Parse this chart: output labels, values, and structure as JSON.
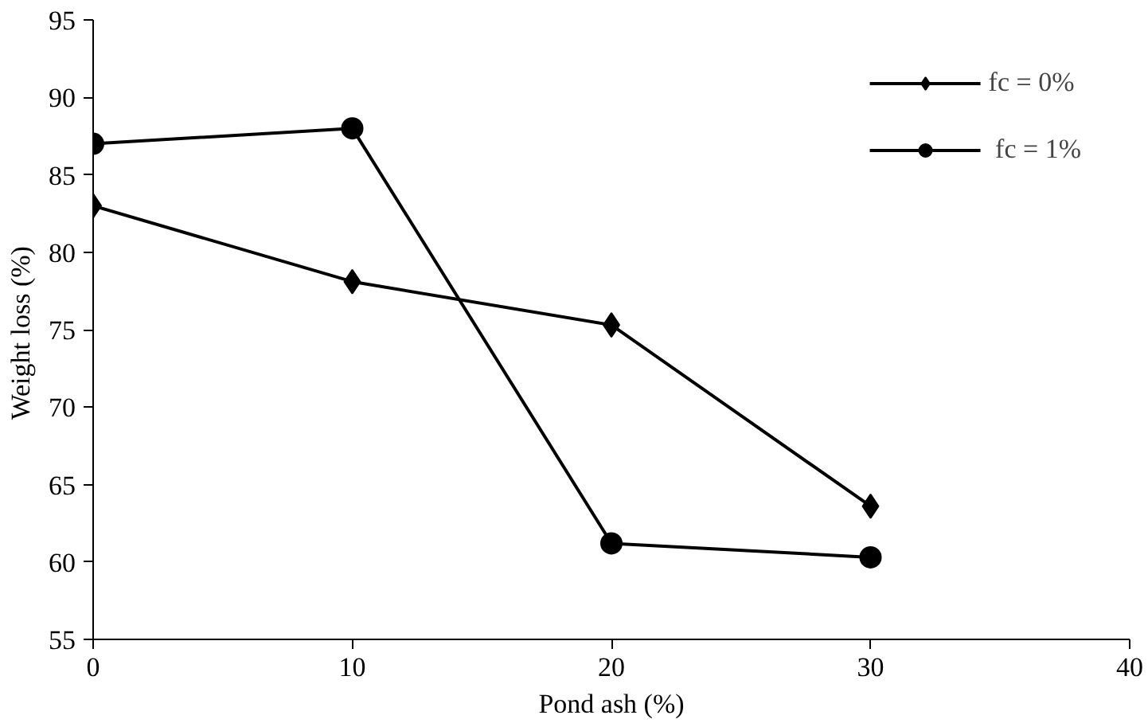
{
  "chart_data": {
    "type": "line",
    "xlabel": "Pond ash (%)",
    "ylabel": "Weight loss  (%)",
    "x": [
      0,
      10,
      20,
      30
    ],
    "series": [
      {
        "name": "fc = 0%",
        "color": "#000000",
        "marker": "diamond",
        "values": [
          83,
          78.1,
          75.3,
          63.6
        ]
      },
      {
        "name": " fc = 1%",
        "color": "#000000",
        "marker": "circle",
        "values": [
          87,
          88,
          61.2,
          60.3
        ]
      }
    ],
    "xlim": [
      0,
      40
    ],
    "xticks": [
      0,
      10,
      20,
      30,
      40
    ],
    "ylim": [
      55,
      95
    ],
    "yticks": [
      55,
      60,
      65,
      70,
      75,
      80,
      85,
      90,
      95
    ],
    "grid": false,
    "legend": "top right",
    "line_style": "solid"
  }
}
